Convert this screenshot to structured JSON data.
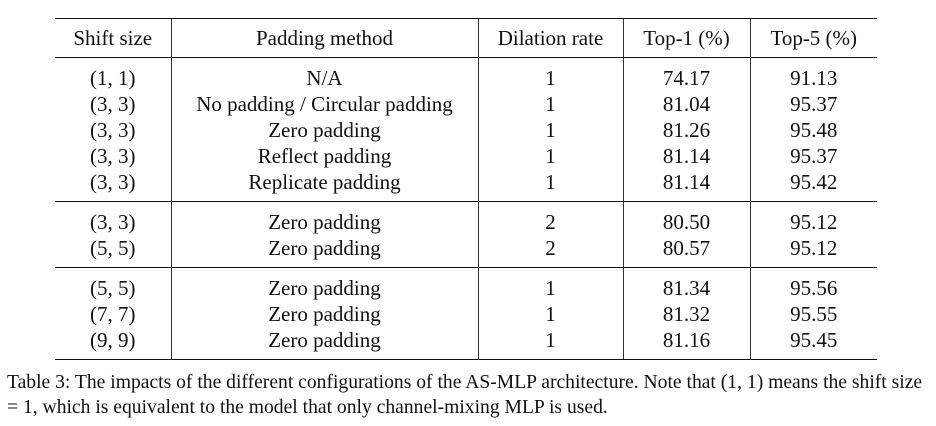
{
  "table": {
    "headers": [
      "Shift size",
      "Padding method",
      "Dilation rate",
      "Top-1 (%)",
      "Top-5 (%)"
    ],
    "groups": [
      [
        [
          "(1, 1)",
          "N/A",
          "1",
          "74.17",
          "91.13"
        ],
        [
          "(3, 3)",
          "No padding / Circular padding",
          "1",
          "81.04",
          "95.37"
        ],
        [
          "(3, 3)",
          "Zero padding",
          "1",
          "81.26",
          "95.48"
        ],
        [
          "(3, 3)",
          "Reflect padding",
          "1",
          "81.14",
          "95.37"
        ],
        [
          "(3, 3)",
          "Replicate padding",
          "1",
          "81.14",
          "95.42"
        ]
      ],
      [
        [
          "(3, 3)",
          "Zero padding",
          "2",
          "80.50",
          "95.12"
        ],
        [
          "(5, 5)",
          "Zero padding",
          "2",
          "80.57",
          "95.12"
        ]
      ],
      [
        [
          "(5, 5)",
          "Zero padding",
          "1",
          "81.34",
          "95.56"
        ],
        [
          "(7, 7)",
          "Zero padding",
          "1",
          "81.32",
          "95.55"
        ],
        [
          "(9, 9)",
          "Zero padding",
          "1",
          "81.16",
          "95.45"
        ]
      ]
    ]
  },
  "caption": "Table 3: The impacts of the different configurations of the AS-MLP architecture. Note that (1, 1) means the shift size = 1, which is equivalent to the model that only channel-mixing MLP is used."
}
